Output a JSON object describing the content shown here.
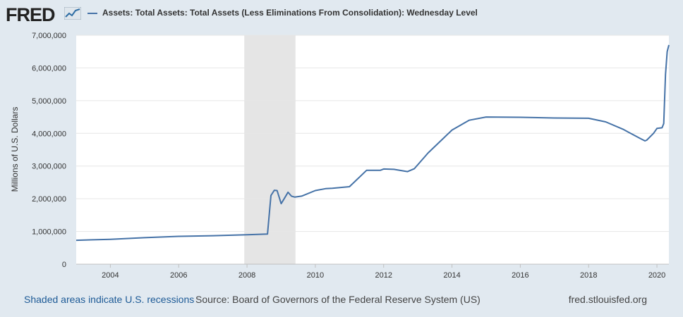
{
  "header": {
    "logo": "FRED",
    "logo_icon": "line-graph-icon",
    "series_title": "Assets: Total Assets: Total Assets (Less Eliminations From Consolidation): Wednesday Level"
  },
  "footer": {
    "recession_note": "Shaded areas indicate U.S. recessions",
    "source": "Source: Board of Governors of the Federal Reserve System (US)",
    "url": "fred.stlouisfed.org"
  },
  "colors": {
    "series": "#4572a7",
    "recession": "#e5e5e5",
    "grid": "#e6e6e6",
    "plot_bg": "#ffffff",
    "page_bg": "#e1e9f0"
  },
  "chart_data": {
    "type": "line",
    "title": "Assets: Total Assets: Total Assets (Less Eliminations From Consolidation): Wednesday Level",
    "xlabel": "",
    "ylabel": "Millions of U.S. Dollars",
    "xlim": [
      2003.0,
      2020.35
    ],
    "ylim": [
      0,
      7000000
    ],
    "x_ticks": [
      2004,
      2006,
      2008,
      2010,
      2012,
      2014,
      2016,
      2018,
      2020
    ],
    "x_tick_labels": [
      "2004",
      "2006",
      "2008",
      "2010",
      "2012",
      "2014",
      "2016",
      "2018",
      "2020"
    ],
    "y_ticks": [
      0,
      1000000,
      2000000,
      3000000,
      4000000,
      5000000,
      6000000,
      7000000
    ],
    "y_tick_labels": [
      "0",
      "1,000,000",
      "2,000,000",
      "3,000,000",
      "4,000,000",
      "5,000,000",
      "6,000,000",
      "7,000,000"
    ],
    "grid": true,
    "recessions": [
      [
        2007.92,
        2009.42
      ]
    ],
    "series": [
      {
        "name": "Assets: Total Assets: Total Assets (Less Eliminations From Consolidation): Wednesday Level",
        "x": [
          2003.0,
          2004.0,
          2005.0,
          2006.0,
          2007.0,
          2008.0,
          2008.6,
          2008.7,
          2008.8,
          2008.88,
          2009.0,
          2009.1,
          2009.2,
          2009.3,
          2009.4,
          2009.6,
          2010.0,
          2010.3,
          2010.5,
          2011.0,
          2011.5,
          2011.9,
          2012.0,
          2012.3,
          2012.7,
          2012.9,
          2013.3,
          2013.7,
          2014.0,
          2014.5,
          2015.0,
          2016.0,
          2017.0,
          2018.0,
          2018.5,
          2019.0,
          2019.5,
          2019.65,
          2019.7,
          2019.9,
          2020.0,
          2020.15,
          2020.2,
          2020.25,
          2020.3,
          2020.35
        ],
        "values": [
          730000,
          760000,
          810000,
          850000,
          870000,
          900000,
          920000,
          2100000,
          2260000,
          2250000,
          1850000,
          2020000,
          2200000,
          2080000,
          2050000,
          2080000,
          2250000,
          2310000,
          2320000,
          2370000,
          2870000,
          2870000,
          2910000,
          2900000,
          2830000,
          2920000,
          3400000,
          3800000,
          4100000,
          4400000,
          4500000,
          4490000,
          4470000,
          4460000,
          4350000,
          4130000,
          3850000,
          3770000,
          3790000,
          4000000,
          4150000,
          4170000,
          4300000,
          5800000,
          6500000,
          6700000
        ]
      }
    ]
  }
}
